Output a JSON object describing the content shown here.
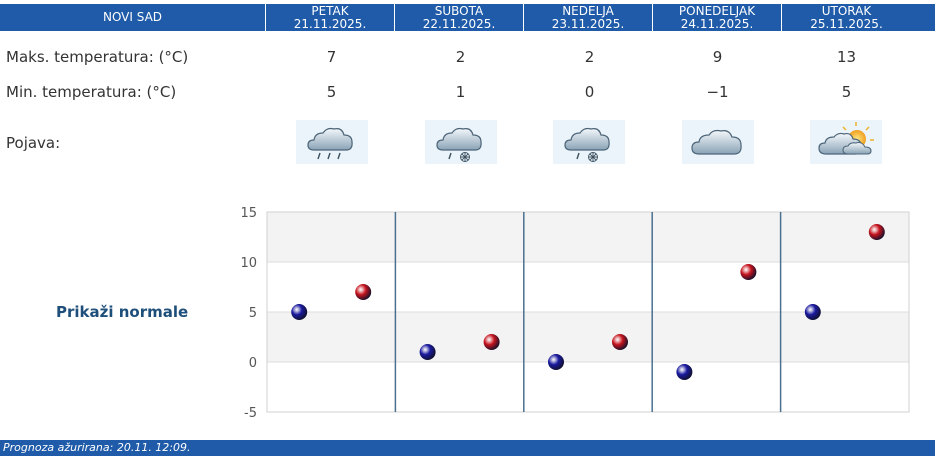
{
  "header": {
    "city": "NOVI SAD",
    "days": [
      {
        "name": "PETAK",
        "date": "21.11.2025."
      },
      {
        "name": "SUBOTA",
        "date": "22.11.2025."
      },
      {
        "name": "NEDELJA",
        "date": "23.11.2025."
      },
      {
        "name": "PONEDELJAK",
        "date": "24.11.2025."
      },
      {
        "name": "UTORAK",
        "date": "25.11.2025."
      }
    ]
  },
  "rows": {
    "max_label": "Maks. temperatura: (°C)",
    "max_values": [
      "7",
      "2",
      "2",
      "9",
      "13"
    ],
    "min_label": "Min. temperatura: (°C)",
    "min_values": [
      "5",
      "1",
      "0",
      "−1",
      "5"
    ],
    "phenomenon_label": "Pojava:"
  },
  "icons": [
    "rain-cloud-icon",
    "rain-snow-cloud-icon",
    "rain-snow-cloud-icon",
    "cloud-icon",
    "sun-cloud-icon"
  ],
  "normals_label": "Prikaži normale",
  "chart_data": {
    "type": "scatter",
    "ylim": [
      -5,
      15
    ],
    "yticks": [
      "15",
      "10",
      "5",
      "0",
      "-5"
    ],
    "ytick_values": [
      15,
      10,
      5,
      0,
      -5
    ],
    "series": [
      {
        "values": [
          5,
          1,
          0,
          -1,
          5
        ],
        "color": "#1a1aa0"
      },
      {
        "values": [
          7,
          2,
          2,
          9,
          13
        ],
        "color": "#c8141e"
      }
    ]
  },
  "footer": "Prognoza ažurirana:  20.11. 12:09."
}
